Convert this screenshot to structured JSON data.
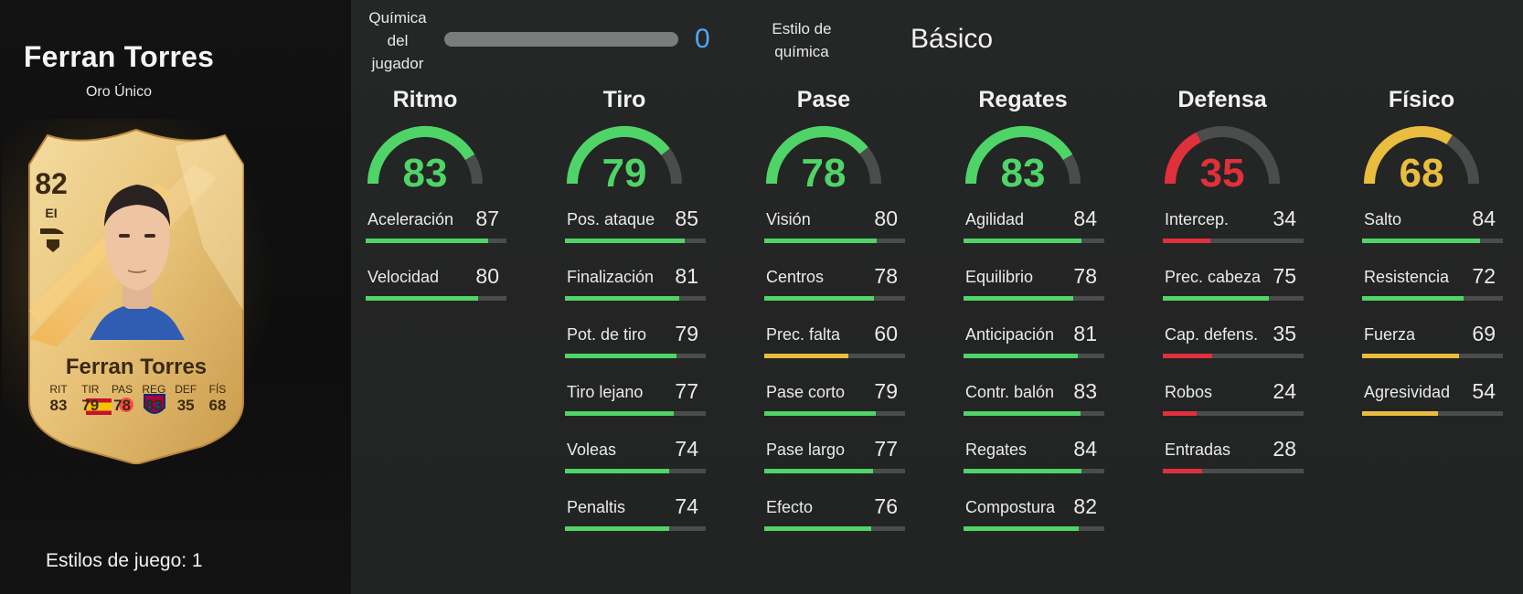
{
  "colors": {
    "green": "#4fd467",
    "yellow": "#e9bd3d",
    "red": "#e0303b",
    "blue": "#4aa9ff",
    "track": "#4b4c4c"
  },
  "player": {
    "name": "Ferran Torres",
    "card_type": "Oro Único",
    "playstyles_label": "Estilos de juego: 1"
  },
  "card": {
    "rating": "82",
    "position": "EI",
    "name": "Ferran Torres",
    "stats": [
      {
        "label": "RIT",
        "value": "83"
      },
      {
        "label": "TIR",
        "value": "79"
      },
      {
        "label": "PAS",
        "value": "78"
      },
      {
        "label": "REG",
        "value": "83"
      },
      {
        "label": "DEF",
        "value": "35"
      },
      {
        "label": "FÍS",
        "value": "68"
      }
    ],
    "icons": [
      "boot-icon",
      "flag-spain-icon",
      "laliga-logo-icon",
      "fc-barcelona-crest-icon"
    ]
  },
  "chemistry": {
    "label_lines": [
      "Química",
      "del",
      "jugador"
    ],
    "value": 0,
    "max": 3,
    "style_label_lines": [
      "Estilo de",
      "química"
    ],
    "style_value": "Básico"
  },
  "categories": [
    {
      "name": "Ritmo",
      "value": 83,
      "color": "green",
      "stats": [
        {
          "label": "Aceleración",
          "value": 87
        },
        {
          "label": "Velocidad",
          "value": 80
        }
      ]
    },
    {
      "name": "Tiro",
      "value": 79,
      "color": "green",
      "stats": [
        {
          "label": "Pos. ataque",
          "value": 85
        },
        {
          "label": "Finalización",
          "value": 81
        },
        {
          "label": "Pot. de tiro",
          "value": 79
        },
        {
          "label": "Tiro lejano",
          "value": 77
        },
        {
          "label": "Voleas",
          "value": 74
        },
        {
          "label": "Penaltis",
          "value": 74
        }
      ]
    },
    {
      "name": "Pase",
      "value": 78,
      "color": "green",
      "stats": [
        {
          "label": "Visión",
          "value": 80
        },
        {
          "label": "Centros",
          "value": 78
        },
        {
          "label": "Prec. falta",
          "value": 60,
          "color": "yellow"
        },
        {
          "label": "Pase corto",
          "value": 79
        },
        {
          "label": "Pase largo",
          "value": 77
        },
        {
          "label": "Efecto",
          "value": 76
        }
      ]
    },
    {
      "name": "Regates",
      "value": 83,
      "color": "green",
      "stats": [
        {
          "label": "Agilidad",
          "value": 84
        },
        {
          "label": "Equilibrio",
          "value": 78
        },
        {
          "label": "Anticipación",
          "value": 81
        },
        {
          "label": "Contr. balón",
          "value": 83
        },
        {
          "label": "Regates",
          "value": 84
        },
        {
          "label": "Compostura",
          "value": 82
        }
      ]
    },
    {
      "name": "Defensa",
      "value": 35,
      "color": "red",
      "stats": [
        {
          "label": "Intercep.",
          "value": 34,
          "color": "red"
        },
        {
          "label": "Prec. cabeza",
          "value": 75,
          "color": "green"
        },
        {
          "label": "Cap. defens.",
          "value": 35,
          "color": "red"
        },
        {
          "label": "Robos",
          "value": 24,
          "color": "red"
        },
        {
          "label": "Entradas",
          "value": 28,
          "color": "red"
        }
      ]
    },
    {
      "name": "Físico",
      "value": 68,
      "color": "yellow",
      "stats": [
        {
          "label": "Salto",
          "value": 84,
          "color": "green"
        },
        {
          "label": "Resistencia",
          "value": 72,
          "color": "green"
        },
        {
          "label": "Fuerza",
          "value": 69,
          "color": "yellow"
        },
        {
          "label": "Agresividad",
          "value": 54,
          "color": "yellow"
        }
      ]
    }
  ]
}
